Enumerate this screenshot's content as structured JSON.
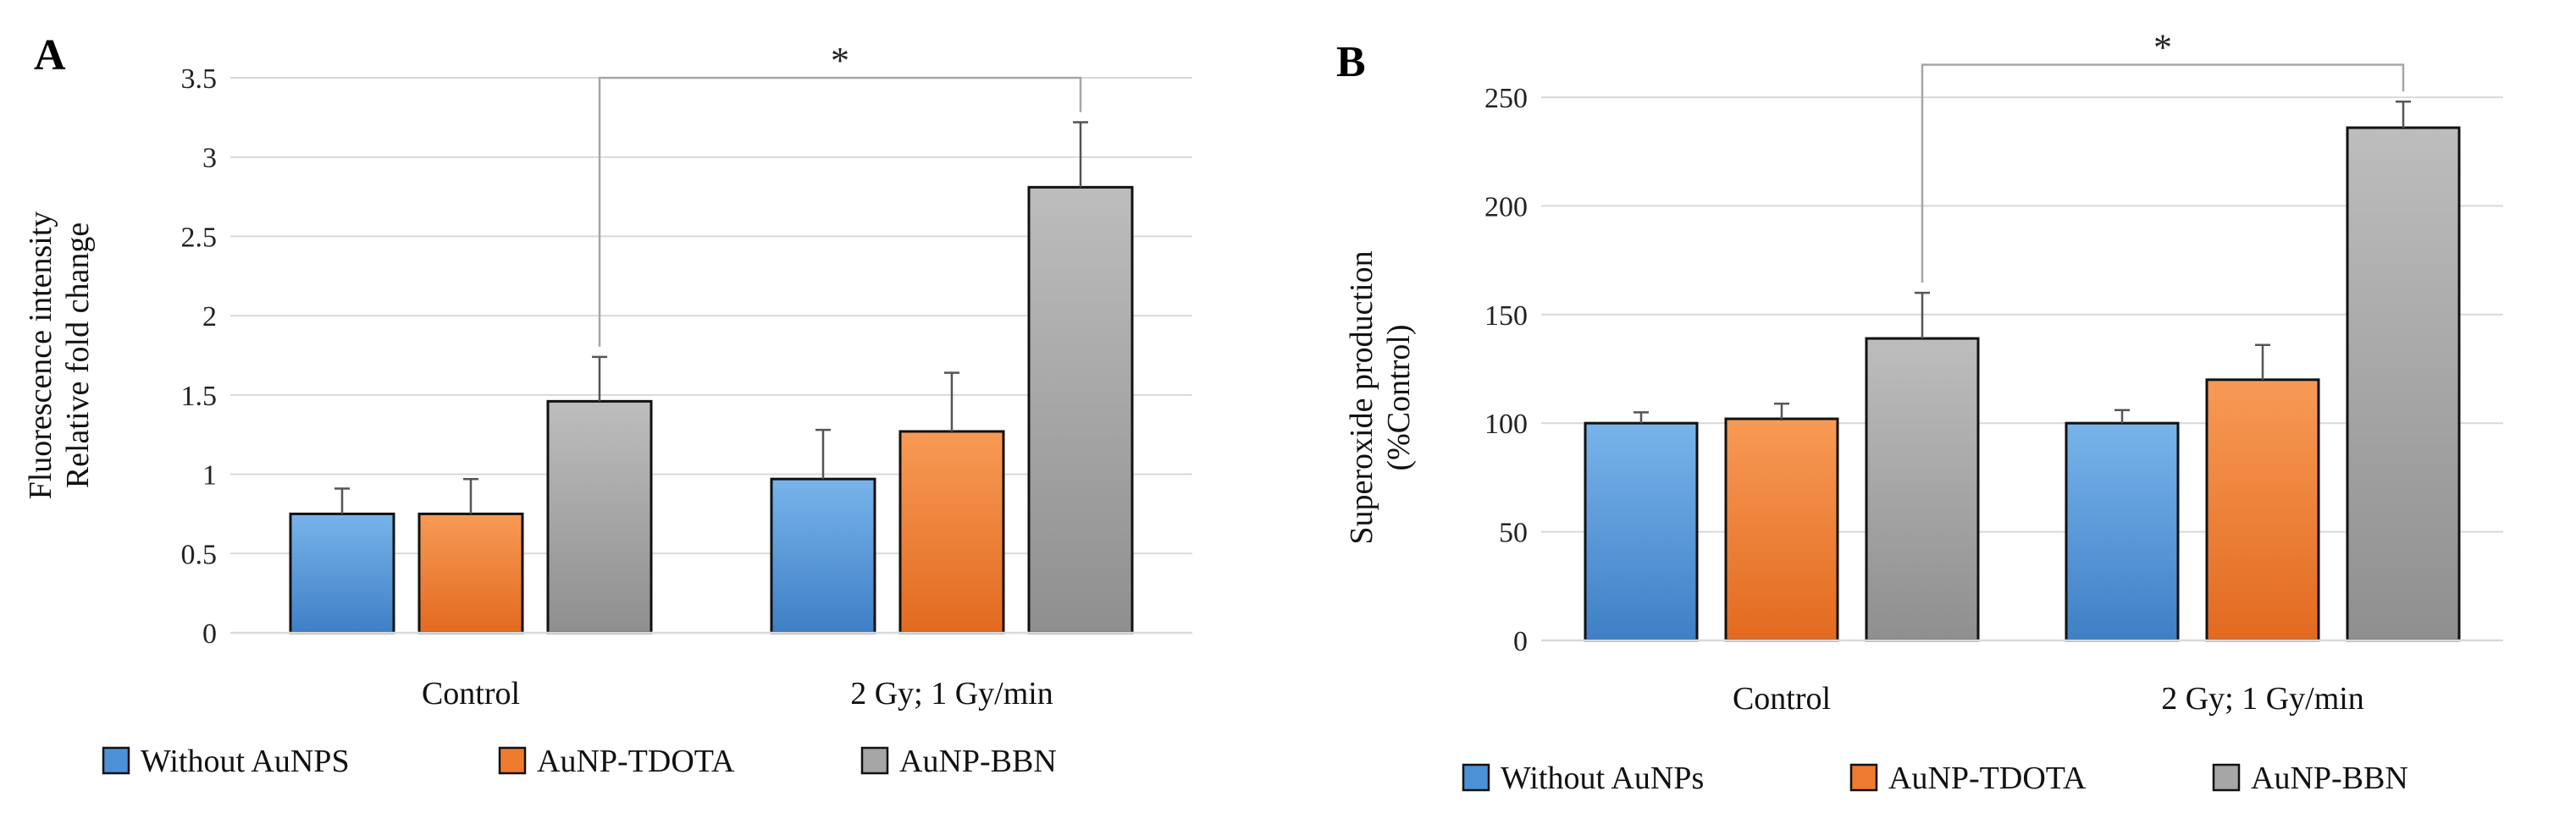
{
  "chart_data": [
    {
      "type": "bar",
      "panel_label": "A",
      "ylabel_lines": [
        "Fluorescence intensity",
        "Relative fold change"
      ],
      "ylim": [
        0,
        3.5
      ],
      "yticks": [
        0,
        0.5,
        1,
        1.5,
        2,
        2.5,
        3,
        3.5
      ],
      "ytick_labels": [
        "0",
        "0.5",
        "1",
        "1.5",
        "2",
        "2.5",
        "3",
        "3.5"
      ],
      "categories": [
        "Control",
        "2 Gy; 1 Gy/min"
      ],
      "series": [
        {
          "name": "Without AuNPS",
          "values": [
            0.75,
            0.97
          ],
          "errors": [
            0.16,
            0.31
          ]
        },
        {
          "name": "AuNP-TDOTA",
          "values": [
            0.75,
            1.27
          ],
          "errors": [
            0.22,
            0.37
          ]
        },
        {
          "name": "AuNP-BBN",
          "values": [
            1.46,
            2.81
          ],
          "errors": [
            0.28,
            0.41
          ]
        }
      ],
      "significance": {
        "label": "*",
        "bracket_top": 3.5
      }
    },
    {
      "type": "bar",
      "panel_label": "B",
      "ylabel_lines": [
        "Superoxide production",
        "(%Control)"
      ],
      "ylim": [
        0,
        250
      ],
      "yticks": [
        0,
        50,
        100,
        150,
        200,
        250
      ],
      "ytick_labels": [
        "0",
        "50",
        "100",
        "150",
        "200",
        "250"
      ],
      "categories": [
        "Control",
        "2 Gy; 1 Gy/min"
      ],
      "series": [
        {
          "name": "Without AuNPs",
          "values": [
            100,
            100
          ],
          "errors": [
            5,
            6
          ]
        },
        {
          "name": "AuNP-TDOTA",
          "values": [
            102,
            120
          ],
          "errors": [
            7,
            16
          ]
        },
        {
          "name": "AuNP-BBN",
          "values": [
            139,
            236
          ],
          "errors": [
            21,
            12
          ]
        }
      ],
      "significance": {
        "label": "*",
        "bracket_top": 265
      }
    }
  ],
  "colors": {
    "series": [
      {
        "light": "#78b4ea",
        "dark": "#3e7fc6",
        "legend": "#4c91d6"
      },
      {
        "light": "#f79a55",
        "dark": "#e26a1f",
        "legend": "#ef7b2e"
      },
      {
        "light": "#bdbdbd",
        "dark": "#8f8f8f",
        "legend": "#a6a6a6"
      }
    ],
    "grid": "#d9d9d9",
    "bracket": "#a6a6a6"
  }
}
